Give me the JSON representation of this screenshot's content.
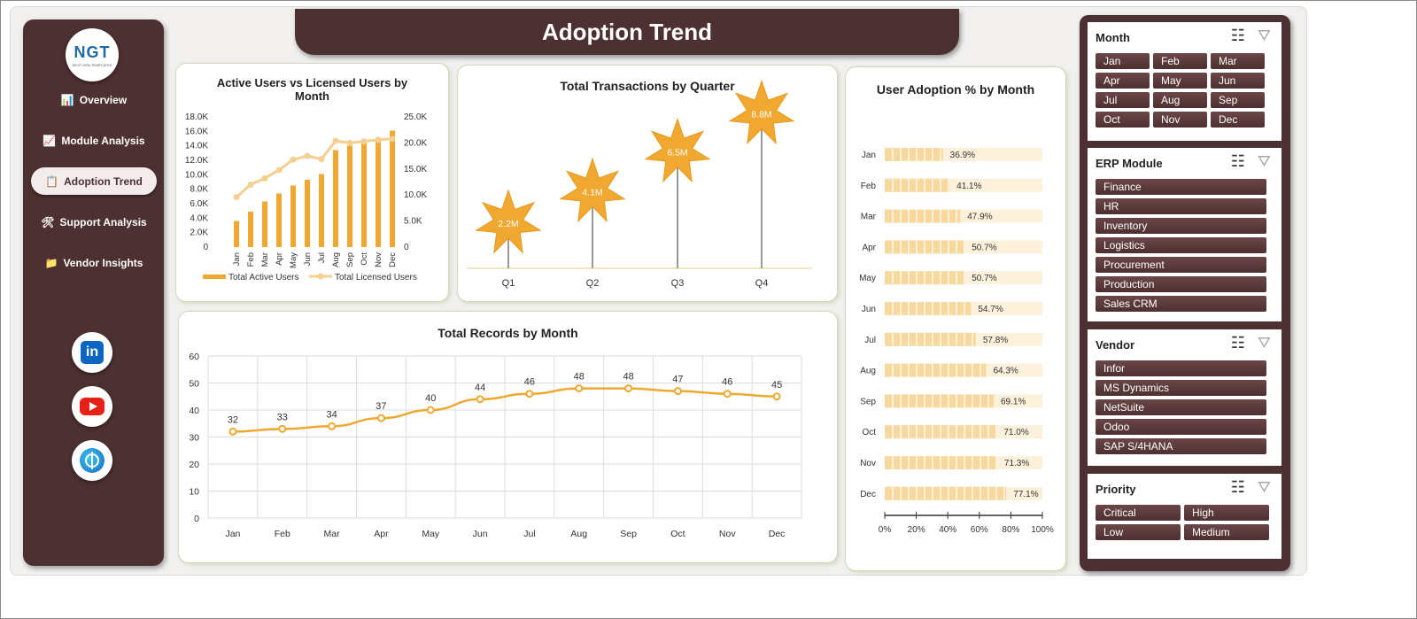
{
  "header": {
    "title": "Adoption Trend"
  },
  "logo": {
    "text": "NGT",
    "subtext": "NEXT GEN TEMPLATES"
  },
  "nav": [
    {
      "label": "Overview",
      "icon": "bar-chart-icon"
    },
    {
      "label": "Module Analysis",
      "icon": "line-chart-icon"
    },
    {
      "label": "Adoption Trend",
      "icon": "clipboard-icon",
      "active": true
    },
    {
      "label": "Support Analysis",
      "icon": "tools-icon"
    },
    {
      "label": "Vendor Insights",
      "icon": "folder-icon"
    }
  ],
  "social": [
    {
      "name": "linkedin-icon",
      "label": "in"
    },
    {
      "name": "youtube-icon"
    },
    {
      "name": "globe-icon"
    }
  ],
  "colors": {
    "brand": "#4d3031",
    "accent": "#f0a830",
    "light": "#f7d9a0",
    "line": "#f4cf8f"
  },
  "chart_data": [
    {
      "type": "bar",
      "title": "Active Users vs Licensed Users by Month",
      "categories": [
        "Jan",
        "Feb",
        "Mar",
        "Apr",
        "May",
        "Jun",
        "Jul",
        "Aug",
        "Sep",
        "Oct",
        "Nov",
        "Dec"
      ],
      "y_ticks": [
        "0",
        "2.0K",
        "4.0K",
        "6.0K",
        "8.0K",
        "10.0K",
        "12.0K",
        "14.0K",
        "16.0K",
        "18.0K"
      ],
      "y2_ticks": [
        "0",
        "5.0K",
        "10.0K",
        "15.0K",
        "20.0K",
        "25.0K"
      ],
      "ylim": [
        0,
        18000
      ],
      "y2lim": [
        0,
        25000
      ],
      "series": [
        {
          "name": "Total Active Users",
          "type": "bar",
          "values": [
            3600,
            4900,
            6300,
            7400,
            8500,
            9300,
            10100,
            13400,
            14000,
            14500,
            15000,
            16100
          ]
        },
        {
          "name": "Total Licensed Users",
          "type": "line",
          "axis": "secondary",
          "values": [
            9600,
            12000,
            13200,
            14800,
            16800,
            17500,
            16900,
            20400,
            20000,
            20300,
            20600,
            20800
          ]
        }
      ]
    },
    {
      "type": "bar",
      "title": "Total Transactions by Quarter",
      "categories": [
        "Q1",
        "Q2",
        "Q3",
        "Q4"
      ],
      "values": [
        2.2,
        4.1,
        6.5,
        8.8
      ],
      "labels": [
        "2.2M",
        "4.1M",
        "6.5M",
        "8.8M"
      ],
      "ylim": [
        0,
        10
      ]
    },
    {
      "type": "bar",
      "orientation": "horizontal",
      "title": "User Adoption % by Month",
      "categories": [
        "Jan",
        "Feb",
        "Mar",
        "Apr",
        "May",
        "Jun",
        "Jul",
        "Aug",
        "Sep",
        "Oct",
        "Nov",
        "Dec"
      ],
      "values": [
        36.9,
        41.1,
        47.9,
        50.7,
        50.7,
        54.7,
        57.8,
        64.3,
        69.1,
        71.0,
        71.3,
        77.1
      ],
      "labels": [
        "36.9%",
        "41.1%",
        "47.9%",
        "50.7%",
        "50.7%",
        "54.7%",
        "57.8%",
        "64.3%",
        "69.1%",
        "71.0%",
        "71.3%",
        "77.1%"
      ],
      "x_ticks": [
        "0%",
        "20%",
        "40%",
        "60%",
        "80%",
        "100%"
      ],
      "xlim": [
        0,
        100
      ]
    },
    {
      "type": "line",
      "title": "Total Records by Month",
      "categories": [
        "Jan",
        "Feb",
        "Mar",
        "Apr",
        "May",
        "Jun",
        "Jul",
        "Aug",
        "Sep",
        "Oct",
        "Nov",
        "Dec"
      ],
      "values": [
        32,
        33,
        34,
        37,
        40,
        44,
        46,
        48,
        48,
        47,
        46,
        45
      ],
      "y_ticks": [
        "0",
        "10",
        "20",
        "30",
        "40",
        "50",
        "60"
      ],
      "ylim": [
        0,
        60
      ],
      "grid": true
    }
  ],
  "slicers": [
    {
      "title": "Month",
      "items": [
        "Jan",
        "Feb",
        "Mar",
        "Apr",
        "May",
        "Jun",
        "Jul",
        "Aug",
        "Sep",
        "Oct",
        "Nov",
        "Dec"
      ],
      "cols": 3
    },
    {
      "title": "ERP Module",
      "items": [
        "Finance",
        "HR",
        "Inventory",
        "Logistics",
        "Procurement",
        "Production",
        "Sales CRM"
      ],
      "cols": 1
    },
    {
      "title": "Vendor",
      "items": [
        "Infor",
        "MS Dynamics",
        "NetSuite",
        "Odoo",
        "SAP S/4HANA"
      ],
      "cols": 1
    },
    {
      "title": "Priority",
      "items": [
        "Critical",
        "High",
        "Low",
        "Medium"
      ],
      "cols": 2
    }
  ],
  "slicer_icons": {
    "multi": "multi-select-icon",
    "clear": "clear-filter-icon"
  }
}
